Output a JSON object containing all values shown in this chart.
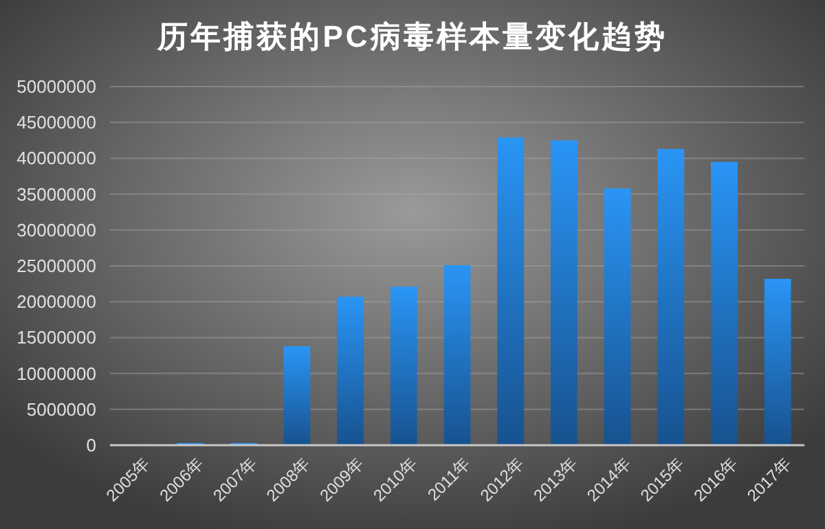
{
  "chart_data": {
    "type": "bar",
    "title": "历年捕获的PC病毒样本量变化趋势",
    "categories": [
      "2005年",
      "2006年",
      "2007年",
      "2008年",
      "2009年",
      "2010年",
      "2011年",
      "2012年",
      "2013年",
      "2014年",
      "2015年",
      "2016年",
      "2017年"
    ],
    "values": [
      100000,
      300000,
      300000,
      13800000,
      20700000,
      22100000,
      25100000,
      42900000,
      42500000,
      35800000,
      41300000,
      39500000,
      23200000
    ],
    "color": "#2a95f5",
    "ylim": [
      0,
      50000000
    ],
    "yticks": [
      0,
      5000000,
      10000000,
      15000000,
      20000000,
      25000000,
      30000000,
      35000000,
      40000000,
      45000000,
      50000000
    ],
    "grid": "y"
  }
}
